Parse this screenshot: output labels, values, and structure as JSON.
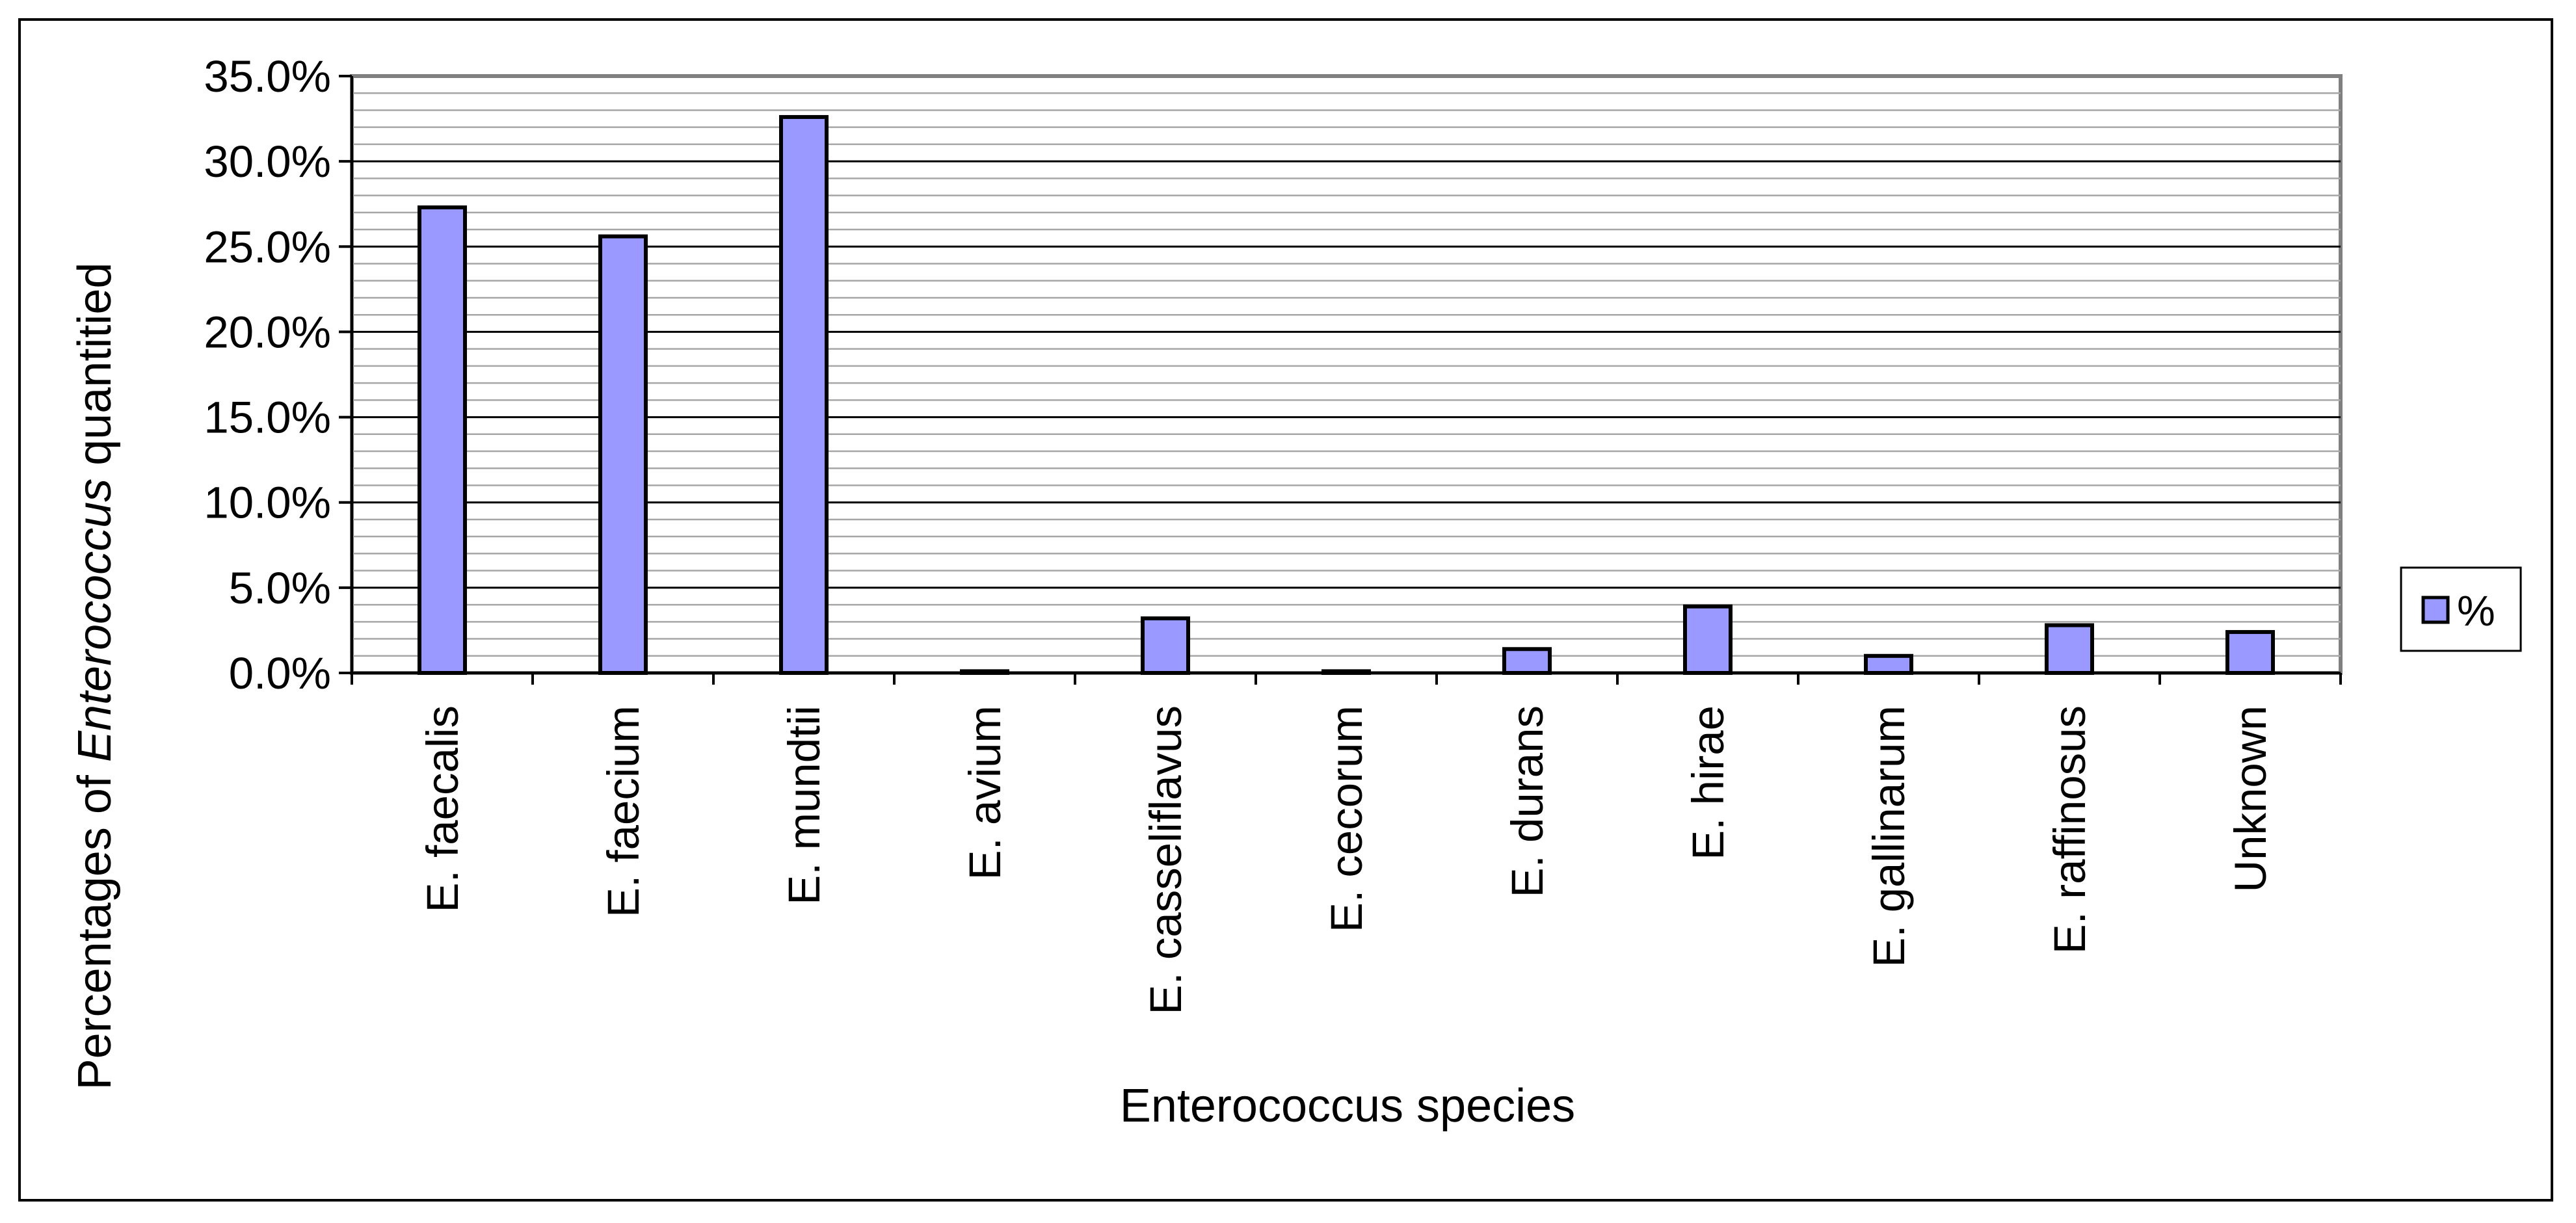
{
  "chart_data": {
    "type": "bar",
    "categories": [
      "E. faecalis",
      "E. faecium",
      "E. mundtii",
      "E. avium",
      "E. casseliflavus",
      "E. cecorum",
      "E. durans",
      "E. hirae",
      "E. gallinarum",
      "E. raffinosus",
      "Unknown"
    ],
    "series": [
      {
        "name": "%",
        "values": [
          27.3,
          25.6,
          32.6,
          0.1,
          3.2,
          0.1,
          1.4,
          3.9,
          1.0,
          2.8,
          2.4
        ]
      }
    ],
    "ylabel_parts": [
      "Percentages of ",
      "Enterococcus",
      " quantitied"
    ],
    "xlabel": "Enterococcus species",
    "ylim": [
      0,
      35
    ],
    "y_ticks": [
      "0.0%",
      "5.0%",
      "10.0%",
      "15.0%",
      "20.0%",
      "25.0%",
      "30.0%",
      "35.0%"
    ],
    "grid": true,
    "legend_position": "right",
    "colors": {
      "bar_fill": "#9999ff",
      "bar_stroke": "#000000",
      "plot_background": "#ffffff",
      "minor_grid": "#a6a6a6",
      "major_grid": "#000000",
      "plot_border": "#808080"
    }
  }
}
